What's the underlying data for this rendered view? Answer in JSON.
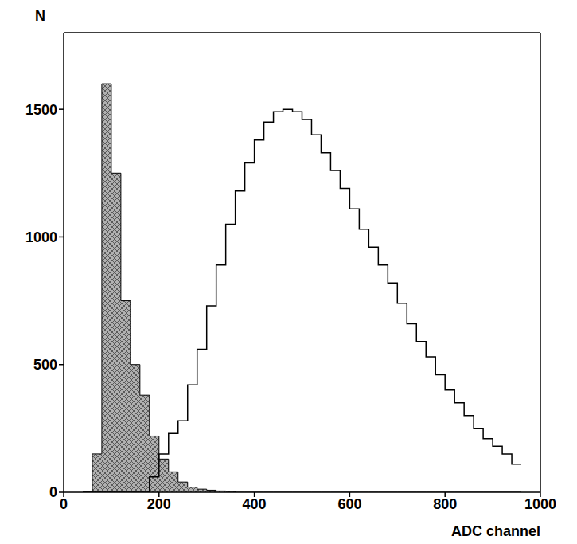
{
  "chart_data": {
    "type": "histogram",
    "x_label": "ADC channel",
    "y_label": "N",
    "bins": [
      40,
      60,
      80,
      100,
      120,
      140,
      160,
      180,
      200,
      220,
      240,
      260,
      280,
      300,
      320,
      340,
      360,
      380,
      400,
      420,
      440,
      460,
      480,
      500,
      520,
      540,
      560,
      580,
      600,
      620,
      640,
      660,
      680,
      700,
      720,
      740,
      760,
      780,
      800,
      820,
      840,
      860,
      880,
      900,
      920,
      940,
      960
    ],
    "series": [
      {
        "type": "area",
        "color": "#b0b0b0",
        "values": [
          0,
          150,
          1600,
          1250,
          750,
          500,
          380,
          220,
          130,
          80,
          40,
          20,
          12,
          8,
          5,
          3,
          0,
          0,
          0,
          0,
          0,
          0,
          0,
          0,
          0,
          0,
          0,
          0,
          0,
          0,
          0,
          0,
          0,
          0,
          0,
          0,
          0,
          0,
          0,
          0,
          0,
          0,
          0,
          0,
          0,
          0
        ]
      },
      {
        "type": "line",
        "color": "#000000",
        "values": [
          0,
          0,
          0,
          0,
          0,
          0,
          0,
          60,
          150,
          230,
          280,
          420,
          560,
          730,
          890,
          1050,
          1180,
          1290,
          1380,
          1450,
          1490,
          1500,
          1490,
          1460,
          1400,
          1330,
          1260,
          1190,
          1110,
          1030,
          960,
          890,
          820,
          740,
          660,
          590,
          530,
          460,
          400,
          350,
          300,
          250,
          210,
          180,
          150,
          110
        ]
      }
    ],
    "xlim": [
      0,
      1000
    ],
    "xticks": [
      0,
      200,
      400,
      600,
      800,
      1000
    ],
    "ylim": [
      0,
      1800
    ],
    "yticks": [
      0,
      500,
      1000,
      1500
    ]
  }
}
